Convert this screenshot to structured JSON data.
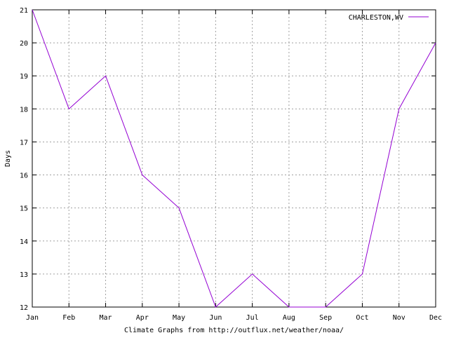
{
  "chart_data": {
    "type": "line",
    "title": "",
    "xlabel": "Climate Graphs from http://outflux.net/weather/noaa/",
    "ylabel": "Days",
    "categories": [
      "Jan",
      "Feb",
      "Mar",
      "Apr",
      "May",
      "Jun",
      "Jul",
      "Aug",
      "Sep",
      "Oct",
      "Nov",
      "Dec"
    ],
    "yticks": [
      "12",
      "13",
      "14",
      "15",
      "16",
      "17",
      "18",
      "19",
      "20",
      "21"
    ],
    "ylim": [
      12,
      21
    ],
    "grid": true,
    "legend_position": "top-right",
    "series": [
      {
        "name": "CHARLESTON,WV",
        "color": "#9400d3",
        "values": [
          21,
          18,
          19,
          16,
          15,
          12,
          13,
          12,
          12,
          13,
          18,
          20
        ]
      }
    ]
  }
}
